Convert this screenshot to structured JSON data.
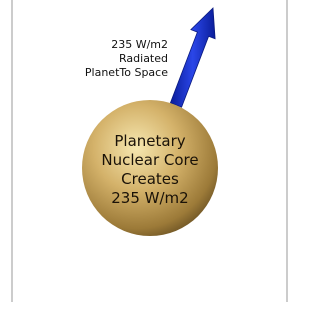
{
  "arrow_label": [
    "235 W/m2",
    "Radiated",
    "PlanetTo Space"
  ],
  "sphere_label": [
    "Planetary",
    "Nuclear Core",
    "Creates",
    "235 W/m2"
  ]
}
